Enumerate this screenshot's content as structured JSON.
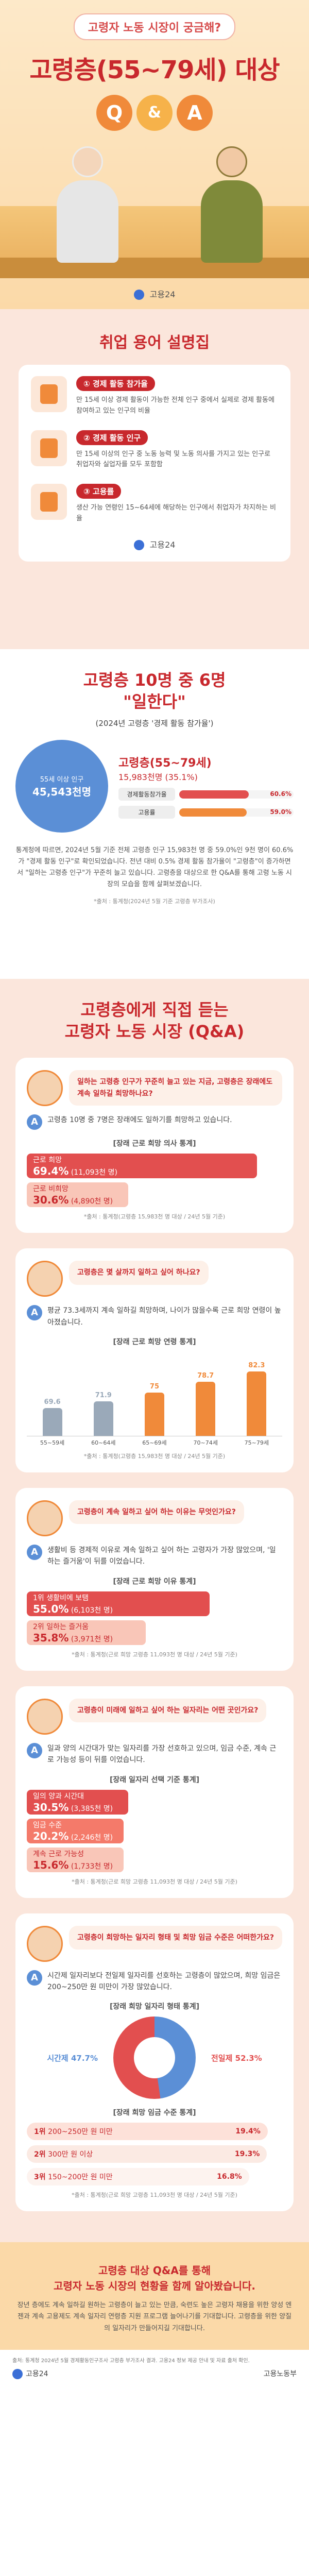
{
  "hero": {
    "subtitle": "고령자 노동 시장이 궁금해?",
    "title": "고령층(55~79세) 대상",
    "q": "Q",
    "amp": "&",
    "a": "A",
    "logo": "고용24"
  },
  "terms": {
    "title": "취업 용어 설명집",
    "items": [
      {
        "tag": "① 경제 활동 참가율",
        "desc": "만 15세 이상 경제 활동이 가능한 전체 인구 중에서 실제로 경제 활동에 참여하고 있는 인구의 비율"
      },
      {
        "tag": "② 경제 활동 인구",
        "desc": "만 15세 이상의 인구 중 노동 능력 및 노동 의사를 가지고 있는 인구로 취업자와 실업자를 모두 포함함"
      },
      {
        "tag": "③ 고용률",
        "desc": "생산 가능 연령인 15~64세에 해당하는 인구에서 취업자가 차지하는 비율"
      }
    ],
    "logo": "고용24"
  },
  "employ": {
    "title_line1": "고령층 10명 중 6명",
    "title_line2": "\"일한다\"",
    "sub": "(2024년 고령층 '경제 활동 참가율')",
    "pop_label": "55세 이상 인구",
    "pop_value": "45,543천명",
    "big_label": "고령층(55~79세)",
    "big_value": "15,983천명 (35.1%)",
    "bars": [
      {
        "label": "경제활동참가율",
        "value": "60.6%",
        "pct": 60.6
      },
      {
        "label": "고용률",
        "value": "59.0%",
        "pct": 59.0
      }
    ],
    "text": "통계청에 따르면, 2024년 5월 기준 전체 고령층 인구 15,983천 명 중 59.0%인 9천 명이 60.6%가 \"경제 활동 인구\"로 확인되었습니다. 전년 대비 0.5% 경제 활동 참가율이 \"고령층\"이 증가하면서 \"일하는 고령층 인구\"가 꾸준히 늘고 있습니다. 고령층을 대상으로 한 Q&A를 통해 고령 노동 시장의 모습을 함께 살펴보겠습니다.",
    "source": "*출처 : 통계청(2024년 5월 기준 고령층 부가조사)"
  },
  "qa": {
    "head_line1": "고령층에게 직접 듣는",
    "head_line2": "고령자 노동 시장 (Q&A)",
    "q1": {
      "question": "일하는 고령층 인구가 꾸준히 늘고 있는 지금, 고령층은 장래에도 계속 일하길 희망하나요?",
      "answer": "고령층 10명 중 7명은 장래에도 일하기를 희망하고 있습니다.",
      "chart_title": "[장래 근로 희망 의사 통계]",
      "bars": [
        {
          "label": "근로 희망",
          "value": "69.4%",
          "sub": "(11,093천 명)",
          "pct": 69.4
        },
        {
          "label": "근로 비희망",
          "value": "30.6%",
          "sub": "(4,890천 명)",
          "pct": 30.6
        }
      ],
      "source": "*출처 : 통계청(고령층 15,983천 명 대상 / 24년 5월 기준)"
    },
    "q2": {
      "question": "고령층은 몇 살까지 일하고 싶어 하나요?",
      "answer": "평균 73.3세까지 계속 일하길 희망하며, 나이가 많을수록 근로 희망 연령이 높아졌습니다.",
      "chart_title": "[장래 근로 희망 연령 통계]",
      "source": "*출처 : 통계청(고령층 15,983천 명 대상 / 24년 5월 기준)"
    },
    "q3": {
      "question": "고령층이 계속 일하고 싶어 하는 이유는 무엇인가요?",
      "answer": "생활비 등 경제적 이유로 계속 일하고 싶어 하는 고령자가 가장 많았으며, '일하는 즐거움'이 뒤를 이었습니다.",
      "chart_title": "[장래 근로 희망 이유 통계]",
      "bars": [
        {
          "rank": "1위",
          "label": "생활비에 보탬",
          "value": "55.0%",
          "sub": "(6,103천 명)",
          "pct": 55.0
        },
        {
          "rank": "2위",
          "label": "일하는 즐거움",
          "value": "35.8%",
          "sub": "(3,971천 명)",
          "pct": 35.8
        }
      ],
      "source": "*출처 : 통계청(근로 희망 고령층 11,093천 명 대상 / 24년 5월 기준)"
    },
    "q4": {
      "question": "고령층이 미래에 일하고 싶어 하는 일자리는 어떤 곳인가요?",
      "answer": "일과 양의 시간대가 맞는 일자리를 가장 선호하고 있으며, 임금 수준, 계속 근로 가능성 등이 뒤를 이었습니다.",
      "chart_title": "[장래 일자리 선택 기준 통계]",
      "bars": [
        {
          "label": "일의 양과 시간대",
          "value": "30.5%",
          "sub": "(3,385천 명)",
          "pct": 30.5
        },
        {
          "label": "임금 수준",
          "value": "20.2%",
          "sub": "(2,246천 명)",
          "pct": 20.2
        },
        {
          "label": "계속 근로 가능성",
          "value": "15.6%",
          "sub": "(1,733천 명)",
          "pct": 15.6
        }
      ],
      "source": "*출처 : 통계청(근로 희망 고령층 11,093천 명 대상 / 24년 5월 기준)"
    },
    "q5": {
      "question": "고령층이 희망하는 일자리 형태 및 희망 임금 수준은 어떠한가요?",
      "answer": "시간제 일자리보다 전일제 일자리를 선호하는 고령층이 많았으며, 희망 임금은 200~250만 원 미만이 가장 많았습니다.",
      "chart_title": "[장래 희망 일자리 형태 통계]",
      "donut": [
        {
          "label": "시간제",
          "value": "47.7%",
          "pct": 47.7
        },
        {
          "label": "전일제",
          "value": "52.3%",
          "pct": 52.3
        }
      ],
      "chart_title2": "[장래 희망 임금 수준 통계]",
      "ranks": [
        {
          "rank": "1위",
          "label": "200~250만 원 미만",
          "value": "19.4%",
          "pct": 19.4
        },
        {
          "rank": "2위",
          "label": "300만 원 이상",
          "value": "19.3%",
          "pct": 19.3
        },
        {
          "rank": "3위",
          "label": "150~200만 원 미만",
          "value": "16.8%",
          "pct": 16.8
        }
      ],
      "source": "*출처 : 통계청(근로 희망 고령층 11,093천 명 대상 / 24년 5월 기준)"
    }
  },
  "footer": {
    "title_line1": "고령층 대상 Q&A를 통해",
    "title_line2": "고령자 노동 시장의 현황을 함께 알아봤습니다.",
    "text": "장년 층에도 계속 일하길 원하는 고령층이 늘고 있는 만큼, 숙련도 높은 고령자 채용을 위한 양성 엔젠과 계속 고용제도 계속 일자리 연령층 지원 프로그램 늘어나기를 기대합니다. 고령층을 위한 양질의 일자리가 만들어지길 기대합니다.",
    "bottom": "출처: 통계청 2024년 5월 경제활동인구조사 고령층 부가조사 결과. 고용24 정보 제공 안내 및 자료 출처 확인.",
    "logo": "고용24",
    "ministry": "고용노동부"
  },
  "chart_data": {
    "type": "bar",
    "title": "[장래 근로 희망 연령 통계]",
    "categories": [
      "55~59세",
      "60~64세",
      "65~69세",
      "70~74세",
      "75~79세"
    ],
    "values": [
      69.6,
      71.9,
      75.0,
      78.7,
      82.3
    ],
    "xlabel": "",
    "ylabel": "",
    "ylim": [
      60,
      85
    ],
    "yticks": [
      60,
      70,
      80
    ],
    "colors": [
      "#9aa9b9",
      "#9aa9b9",
      "#f08a3a",
      "#f08a3a",
      "#f08a3a"
    ]
  }
}
